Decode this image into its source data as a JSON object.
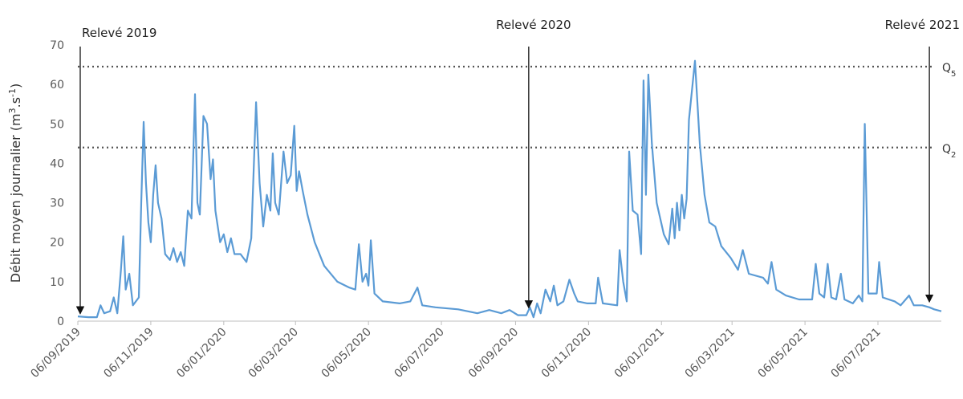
{
  "chart_data": {
    "type": "line",
    "y_label": [
      {
        "text": "Débit moyen journalier (m"
      },
      {
        "text": "3",
        "sup": true
      },
      {
        "text": ".s"
      },
      {
        "text": "-1",
        "sup": true
      },
      {
        "text": ")"
      }
    ],
    "xlim": [
      "06/09/2019",
      "28/08/2021"
    ],
    "xticks": [
      "06/09/2019",
      "06/11/2019",
      "06/01/2020",
      "06/03/2020",
      "06/05/2020",
      "06/07/2020",
      "06/09/2020",
      "06/11/2020",
      "06/01/2021",
      "06/03/2021",
      "06/05/2021",
      "06/07/2021"
    ],
    "ylim": [
      0,
      70
    ],
    "yticks": [
      0,
      10,
      20,
      30,
      40,
      50,
      60,
      70
    ],
    "reference_lines": [
      {
        "value": 64.5,
        "label": "Q",
        "sub": "5"
      },
      {
        "value": 44,
        "label": "Q",
        "sub": "2"
      }
    ],
    "annotations": [
      {
        "text": "Relevé 2019",
        "x": "08/09/2019",
        "y": 1.5
      },
      {
        "text": "Relevé 2020",
        "x": "17/09/2020",
        "y": 3
      },
      {
        "text": "Relevé 2021",
        "x": "18/08/2021",
        "y": 4.5
      }
    ],
    "series": [
      {
        "color": "#5b9bd5",
        "x": [
          "06/09/2019",
          "15/09/2019",
          "22/09/2019",
          "25/09/2019",
          "28/09/2019",
          "03/10/2019",
          "06/10/2019",
          "09/10/2019",
          "12/10/2019",
          "14/10/2019",
          "16/10/2019",
          "19/10/2019",
          "22/10/2019",
          "27/10/2019",
          "29/10/2019",
          "31/10/2019",
          "02/11/2019",
          "04/11/2019",
          "06/11/2019",
          "08/11/2019",
          "10/11/2019",
          "12/11/2019",
          "15/11/2019",
          "18/11/2019",
          "22/11/2019",
          "25/11/2019",
          "28/11/2019",
          "01/12/2019",
          "04/12/2019",
          "07/12/2019",
          "10/12/2019",
          "13/12/2019",
          "15/12/2019",
          "17/12/2019",
          "20/12/2019",
          "23/12/2019",
          "26/12/2019",
          "28/12/2019",
          "30/12/2019",
          "03/01/2020",
          "06/01/2020",
          "09/01/2020",
          "12/01/2020",
          "15/01/2020",
          "20/01/2020",
          "25/01/2020",
          "29/01/2020",
          "02/02/2020",
          "05/02/2020",
          "08/02/2020",
          "11/02/2020",
          "14/02/2020",
          "16/02/2020",
          "18/02/2020",
          "21/02/2020",
          "25/02/2020",
          "28/02/2020",
          "02/03/2020",
          "05/03/2020",
          "07/03/2020",
          "09/03/2020",
          "12/03/2020",
          "16/03/2020",
          "22/03/2020",
          "30/03/2020",
          "10/04/2020",
          "20/04/2020",
          "25/04/2020",
          "28/04/2020",
          "01/05/2020",
          "04/05/2020",
          "06/05/2020",
          "08/05/2020",
          "11/05/2020",
          "18/05/2020",
          "01/06/2020",
          "10/06/2020",
          "16/06/2020",
          "20/06/2020",
          "01/07/2020",
          "20/07/2020",
          "05/08/2020",
          "15/08/2020",
          "25/08/2020",
          "01/09/2020",
          "08/09/2020",
          "15/09/2020",
          "18/09/2020",
          "21/09/2020",
          "24/09/2020",
          "27/09/2020",
          "01/10/2020",
          "05/10/2020",
          "08/10/2020",
          "11/10/2020",
          "16/10/2020",
          "21/10/2020",
          "25/10/2020",
          "28/10/2020",
          "05/11/2020",
          "12/11/2020",
          "14/11/2020",
          "18/11/2020",
          "30/11/2020",
          "02/12/2020",
          "05/12/2020",
          "08/12/2020",
          "10/12/2020",
          "13/12/2020",
          "17/12/2020",
          "20/12/2020",
          "22/12/2020",
          "24/12/2020",
          "26/12/2020",
          "29/12/2020",
          "02/01/2021",
          "08/01/2021",
          "12/01/2021",
          "15/01/2021",
          "17/01/2021",
          "19/01/2021",
          "21/01/2021",
          "23/01/2021",
          "25/01/2021",
          "27/01/2021",
          "29/01/2021",
          "03/02/2021",
          "07/02/2021",
          "11/02/2021",
          "15/02/2021",
          "20/02/2021",
          "25/02/2021",
          "05/03/2021",
          "11/03/2021",
          "15/03/2021",
          "20/03/2021",
          "01/04/2021",
          "05/04/2021",
          "08/04/2021",
          "12/04/2021",
          "20/04/2021",
          "01/05/2021",
          "12/05/2021",
          "15/05/2021",
          "18/05/2021",
          "22/05/2021",
          "25/05/2021",
          "28/05/2021",
          "01/06/2021",
          "05/06/2021",
          "08/06/2021",
          "15/06/2021",
          "20/06/2021",
          "23/06/2021",
          "25/06/2021",
          "28/06/2021",
          "01/07/2021",
          "05/07/2021",
          "07/07/2021",
          "10/07/2021",
          "20/07/2021",
          "25/07/2021",
          "01/08/2021",
          "05/08/2021",
          "12/08/2021",
          "18/08/2021",
          "22/08/2021",
          "28/08/2021"
        ],
        "values": [
          1.2,
          1.0,
          1.0,
          4.0,
          2.0,
          2.5,
          6.0,
          2.0,
          13,
          21.5,
          8,
          12,
          4,
          6,
          30,
          50.5,
          35,
          25,
          20,
          32,
          39.5,
          30,
          26,
          17,
          15.5,
          18.5,
          15,
          17.5,
          14,
          28,
          26,
          57.5,
          30,
          27,
          52,
          50,
          36,
          41,
          28,
          20,
          22,
          17.5,
          21,
          17,
          17,
          15,
          21,
          55.5,
          35,
          24,
          32,
          28,
          42.5,
          30,
          27,
          43,
          35,
          37,
          49.5,
          33,
          38,
          33,
          27,
          20,
          14,
          10,
          8.5,
          8,
          19.5,
          10,
          12,
          9,
          20.5,
          7,
          5,
          4.5,
          5,
          8.5,
          4,
          3.5,
          3,
          2,
          2.8,
          2,
          2.8,
          1.5,
          1.5,
          3.5,
          1.0,
          4.5,
          2,
          8,
          5,
          9,
          4,
          5,
          10.5,
          7,
          5,
          4.5,
          4.5,
          11,
          4.5,
          4,
          18,
          10,
          5,
          43,
          28,
          27,
          17,
          61,
          32,
          62.5,
          45,
          30,
          22,
          19.5,
          28.5,
          21,
          30,
          23,
          32,
          26,
          31,
          51,
          66,
          45,
          32,
          25,
          24,
          19,
          16,
          13,
          18,
          12,
          11,
          9.5,
          15,
          8,
          6.5,
          5.5,
          5.5,
          14.5,
          7,
          6,
          14.5,
          6,
          5.5,
          12,
          5.5,
          4.5,
          6.5,
          5,
          50,
          7,
          7,
          7,
          15,
          6,
          5,
          4,
          6.5,
          4,
          4,
          3.5,
          3,
          2.5
        ]
      }
    ]
  }
}
